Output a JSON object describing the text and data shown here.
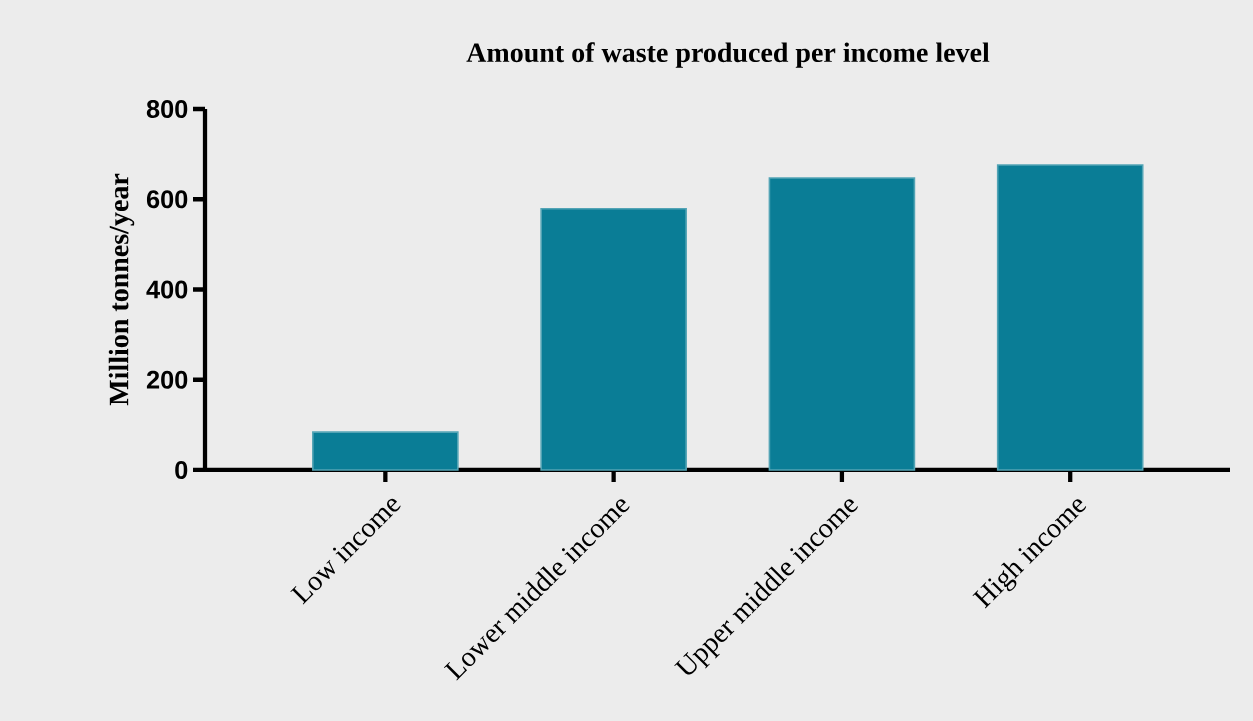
{
  "chart_data": {
    "type": "bar",
    "title": "Amount of waste produced per income level",
    "ylabel": "Million tonnes/year",
    "categories": [
      "Low income",
      "Lower middle income",
      "Upper middle income",
      "High income"
    ],
    "values": [
      84,
      579,
      647,
      676
    ],
    "color": "#0a7d96",
    "ylim": [
      0,
      800
    ],
    "yticks": [
      0,
      200,
      400,
      600,
      800
    ]
  }
}
